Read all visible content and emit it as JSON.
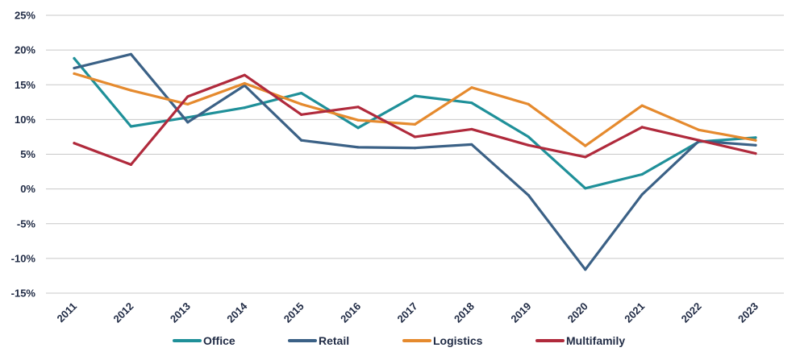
{
  "chart_data": {
    "type": "line",
    "categories": [
      "2011",
      "2012",
      "2013",
      "2014",
      "2015",
      "2016",
      "2017",
      "2018",
      "2019",
      "2020",
      "2021",
      "2022",
      "2023"
    ],
    "ylim": [
      -15,
      25
    ],
    "yticks": [
      -15,
      -10,
      -5,
      0,
      5,
      10,
      15,
      20,
      25
    ],
    "ytick_labels": [
      "-15%",
      "-10%",
      "-5%",
      "0%",
      "5%",
      "10%",
      "15%",
      "20%",
      "25%"
    ],
    "grid": true,
    "legend_position": "bottom",
    "series": [
      {
        "name": "Office",
        "color": "#1f9099",
        "values": [
          18.8,
          9.0,
          10.3,
          11.7,
          13.8,
          8.8,
          13.4,
          12.4,
          7.5,
          0.1,
          2.1,
          6.8,
          7.4
        ]
      },
      {
        "name": "Retail",
        "color": "#3b6186",
        "values": [
          17.4,
          19.4,
          9.6,
          14.9,
          7.0,
          6.0,
          5.9,
          6.4,
          -0.9,
          -11.6,
          -0.8,
          6.9,
          6.3
        ]
      },
      {
        "name": "Logistics",
        "color": "#e58a2e",
        "values": [
          16.6,
          14.2,
          12.2,
          15.2,
          12.2,
          9.9,
          9.3,
          14.6,
          12.2,
          6.2,
          12.0,
          8.5,
          7.0
        ]
      },
      {
        "name": "Multifamily",
        "color": "#b02a3c",
        "values": [
          6.6,
          3.5,
          13.3,
          16.4,
          10.7,
          11.8,
          7.5,
          8.6,
          6.3,
          4.6,
          8.9,
          7.0,
          5.1
        ]
      }
    ]
  }
}
